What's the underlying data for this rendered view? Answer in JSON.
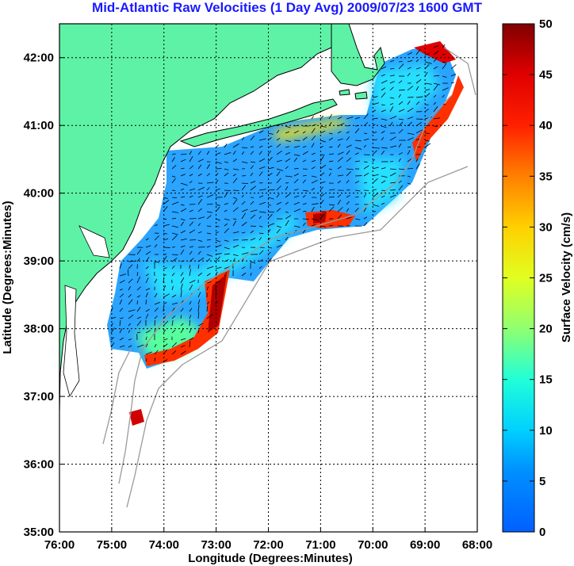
{
  "title": "Mid-Atlantic Raw Velocities (1 Day Avg) 2009/07/23 1600 GMT",
  "x_axis": {
    "label": "Longitude (Degrees:Minutes)",
    "ticks": [
      "76:00",
      "75:00",
      "74:00",
      "73:00",
      "72:00",
      "71:00",
      "70:00",
      "69:00",
      "68:00"
    ]
  },
  "y_axis": {
    "label": "Latitude (Degrees:Minutes)",
    "ticks": [
      "42:00",
      "41:00",
      "40:00",
      "39:00",
      "38:00",
      "37:00",
      "36:00",
      "35:00"
    ]
  },
  "colorbar": {
    "label": "Surface Velocity (cm/s)",
    "ticks": [
      "50",
      "45",
      "40",
      "35",
      "30",
      "25",
      "20",
      "15",
      "10",
      "5",
      "0"
    ],
    "range": [
      0,
      50
    ]
  },
  "colors": {
    "land": "#5ef2a6",
    "bathymetry": "#9a9a9a",
    "title": "#1a1aff",
    "vector": "#000000"
  },
  "map_extent": {
    "lon": [
      -76,
      -68
    ],
    "lat": [
      35,
      42.5
    ]
  }
}
